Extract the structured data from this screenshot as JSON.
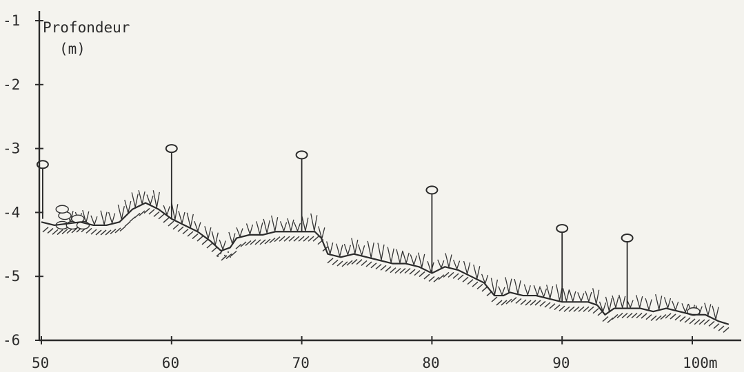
{
  "chart_data": {
    "type": "line",
    "ylabel_line1": "Profondeur",
    "ylabel_line2": "(m)",
    "xlim": [
      50,
      103
    ],
    "ylim": [
      -6,
      -1
    ],
    "y_ticks": [
      "-1",
      "-2",
      "-3",
      "-4",
      "-5",
      "-6"
    ],
    "y_tick_values": [
      -1,
      -2,
      -3,
      -4,
      -5,
      -6
    ],
    "x_ticks": [
      "50",
      "60",
      "70",
      "80",
      "90",
      "100m"
    ],
    "x_tick_values": [
      50,
      60,
      70,
      80,
      90,
      100
    ],
    "profile": {
      "x": [
        50,
        51,
        53,
        54,
        55,
        56,
        57,
        58,
        59,
        60,
        61,
        62,
        63,
        63.8,
        64.5,
        65,
        66,
        67,
        68,
        69,
        70,
        71,
        71.5,
        72,
        73,
        74,
        75,
        76,
        77,
        78,
        79,
        80,
        81,
        82,
        83,
        84,
        84.8,
        85.5,
        86,
        87,
        88,
        89,
        90,
        91,
        92,
        92.7,
        93.3,
        94,
        95,
        96,
        97,
        98,
        99,
        100,
        101,
        102,
        102.8
      ],
      "y": [
        -4.15,
        -4.2,
        -4.15,
        -4.2,
        -4.2,
        -4.15,
        -3.95,
        -3.85,
        -3.95,
        -4.1,
        -4.2,
        -4.3,
        -4.45,
        -4.6,
        -4.55,
        -4.4,
        -4.35,
        -4.35,
        -4.3,
        -4.3,
        -4.3,
        -4.3,
        -4.4,
        -4.65,
        -4.7,
        -4.65,
        -4.7,
        -4.75,
        -4.8,
        -4.8,
        -4.85,
        -4.95,
        -4.85,
        -4.9,
        -5.0,
        -5.1,
        -5.3,
        -5.3,
        -5.25,
        -5.3,
        -5.3,
        -5.35,
        -5.4,
        -5.4,
        -5.4,
        -5.45,
        -5.6,
        -5.5,
        -5.5,
        -5.5,
        -5.55,
        -5.5,
        -5.55,
        -5.6,
        -5.6,
        -5.7,
        -5.75
      ]
    },
    "stakes": [
      {
        "x": 50.1,
        "top": -3.25,
        "base": -4.1
      },
      {
        "x": 60,
        "top": -3.0,
        "base": -4.1
      },
      {
        "x": 70,
        "top": -3.1,
        "base": -4.3
      },
      {
        "x": 80,
        "top": -3.65,
        "base": -4.95
      },
      {
        "x": 90,
        "top": -4.25,
        "base": -5.4
      },
      {
        "x": 95,
        "top": -4.4,
        "base": -5.5
      }
    ],
    "stones": [
      {
        "x": 51.6,
        "y": -4.2
      },
      {
        "x": 52.4,
        "y": -4.2
      },
      {
        "x": 53.2,
        "y": -4.2
      },
      {
        "x": 51.8,
        "y": -4.05
      },
      {
        "x": 52.8,
        "y": -4.1
      },
      {
        "x": 51.6,
        "y": -3.95
      },
      {
        "x": 100.1,
        "y": -5.55
      }
    ],
    "grid": false
  }
}
